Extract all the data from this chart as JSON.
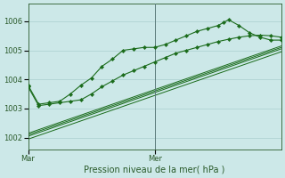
{
  "xlabel": "Pression niveau de la mer( hPa )",
  "bg_color": "#cce8e8",
  "plot_bg_color": "#cce8e8",
  "grid_color": "#aacfcf",
  "line_color": "#1a6b1a",
  "axis_color": "#2a5a2a",
  "yticks": [
    1002,
    1003,
    1004,
    1005,
    1006
  ],
  "ylim": [
    1001.6,
    1006.6
  ],
  "xlim": [
    0,
    48
  ],
  "xtick_positions": [
    0,
    24
  ],
  "xtick_labels": [
    "Mar",
    "Mer"
  ],
  "vline_x": 24,
  "series1_x": [
    0,
    2,
    4,
    6,
    8,
    10,
    12,
    14,
    16,
    18,
    20,
    22,
    24,
    26,
    28,
    30,
    32,
    34,
    36,
    37,
    38,
    40,
    42,
    44,
    46,
    48
  ],
  "series1_y": [
    1003.8,
    1003.15,
    1003.2,
    1003.25,
    1003.5,
    1003.8,
    1004.05,
    1004.45,
    1004.7,
    1005.0,
    1005.05,
    1005.1,
    1005.1,
    1005.2,
    1005.35,
    1005.5,
    1005.65,
    1005.75,
    1005.85,
    1005.95,
    1006.05,
    1005.85,
    1005.6,
    1005.45,
    1005.35,
    1005.35
  ],
  "series2_x": [
    0,
    2,
    4,
    6,
    8,
    10,
    12,
    14,
    16,
    18,
    20,
    22,
    24,
    26,
    28,
    30,
    32,
    34,
    36,
    38,
    40,
    42,
    44,
    46,
    48
  ],
  "series2_y": [
    1003.75,
    1003.1,
    1003.15,
    1003.2,
    1003.25,
    1003.3,
    1003.5,
    1003.75,
    1003.95,
    1004.15,
    1004.3,
    1004.45,
    1004.6,
    1004.75,
    1004.9,
    1005.0,
    1005.1,
    1005.2,
    1005.3,
    1005.38,
    1005.45,
    1005.5,
    1005.52,
    1005.5,
    1005.45
  ],
  "trend1_x": [
    0,
    48
  ],
  "trend1_y": [
    1002.05,
    1005.05
  ],
  "trend2_x": [
    0,
    48
  ],
  "trend2_y": [
    1002.15,
    1005.15
  ],
  "trend3_x": [
    0,
    48
  ],
  "trend3_y": [
    1001.95,
    1004.95
  ],
  "trend4_x": [
    0,
    48
  ],
  "trend4_y": [
    1002.1,
    1005.1
  ]
}
